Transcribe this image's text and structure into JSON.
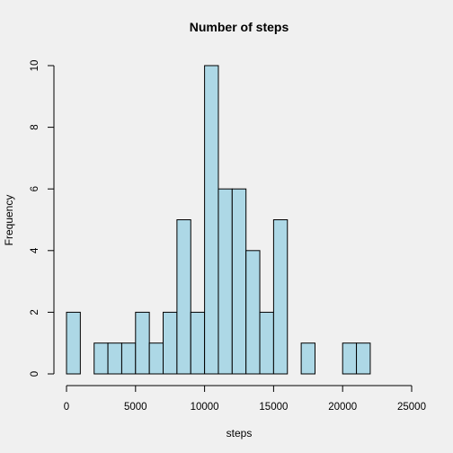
{
  "chart_data": {
    "type": "bar",
    "title": "Number of steps",
    "xlabel": "steps",
    "ylabel": "Frequency",
    "bin_width": 1000,
    "bins": [
      {
        "start": 0,
        "end": 1000,
        "count": 2
      },
      {
        "start": 1000,
        "end": 2000,
        "count": 0
      },
      {
        "start": 2000,
        "end": 3000,
        "count": 1
      },
      {
        "start": 3000,
        "end": 4000,
        "count": 1
      },
      {
        "start": 4000,
        "end": 5000,
        "count": 1
      },
      {
        "start": 5000,
        "end": 6000,
        "count": 2
      },
      {
        "start": 6000,
        "end": 7000,
        "count": 1
      },
      {
        "start": 7000,
        "end": 8000,
        "count": 2
      },
      {
        "start": 8000,
        "end": 9000,
        "count": 5
      },
      {
        "start": 9000,
        "end": 10000,
        "count": 2
      },
      {
        "start": 10000,
        "end": 11000,
        "count": 10
      },
      {
        "start": 11000,
        "end": 12000,
        "count": 6
      },
      {
        "start": 12000,
        "end": 13000,
        "count": 6
      },
      {
        "start": 13000,
        "end": 14000,
        "count": 4
      },
      {
        "start": 14000,
        "end": 15000,
        "count": 2
      },
      {
        "start": 15000,
        "end": 16000,
        "count": 5
      },
      {
        "start": 16000,
        "end": 17000,
        "count": 0
      },
      {
        "start": 17000,
        "end": 18000,
        "count": 1
      },
      {
        "start": 18000,
        "end": 19000,
        "count": 0
      },
      {
        "start": 19000,
        "end": 20000,
        "count": 0
      },
      {
        "start": 20000,
        "end": 21000,
        "count": 1
      },
      {
        "start": 21000,
        "end": 22000,
        "count": 1
      }
    ],
    "xlim": [
      0,
      25000
    ],
    "ylim": [
      0,
      10
    ],
    "x_ticks": [
      0,
      5000,
      10000,
      15000,
      20000,
      25000
    ],
    "y_ticks": [
      0,
      2,
      4,
      6,
      8,
      10
    ],
    "grid": false,
    "bar_color": "#add8e6",
    "bar_stroke": "#000000",
    "background": "#f0f0f0"
  }
}
